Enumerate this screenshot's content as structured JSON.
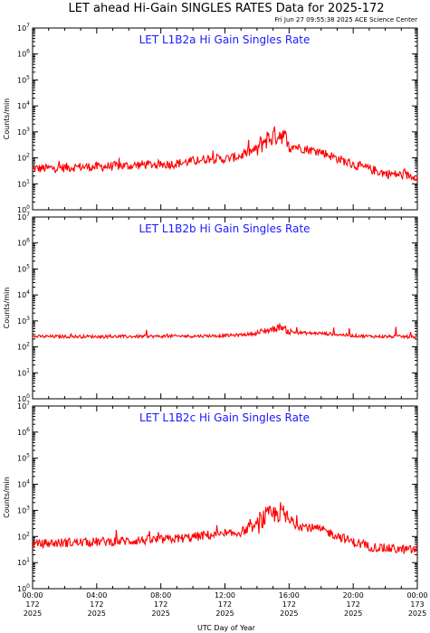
{
  "figure": {
    "title": "LET ahead Hi-Gain SINGLES RATES Data for 2025-172",
    "timestamp": "Fri Jun 27 09:55:38 2025 ACE Science Center",
    "ylabel": "Counts/min",
    "xlabel": "UTC Day of Year",
    "colors": {
      "trace": "#ff0000",
      "panel_title": "#1a1aff",
      "axes": "#000000",
      "background": "#ffffff"
    }
  },
  "x_ticks": [
    {
      "time": "00:00",
      "doy": "172",
      "year": "2025"
    },
    {
      "time": "04:00",
      "doy": "172",
      "year": "2025"
    },
    {
      "time": "08:00",
      "doy": "172",
      "year": "2025"
    },
    {
      "time": "12:00",
      "doy": "172",
      "year": "2025"
    },
    {
      "time": "16:00",
      "doy": "172",
      "year": "2025"
    },
    {
      "time": "20:00",
      "doy": "172",
      "year": "2025"
    },
    {
      "time": "00:00",
      "doy": "173",
      "year": "2025"
    }
  ],
  "chart_data": [
    {
      "type": "line",
      "title": "LET L1B2a Hi Gain Singles Rate",
      "ylabel": "Counts/min",
      "xlabel": "UTC Day of Year",
      "x_unit": "hours of day 172 (2025)",
      "xlim": [
        0,
        24
      ],
      "ylim": [
        1,
        10000000
      ],
      "yscale": "log",
      "y_tick_labels": [
        "10^0",
        "10^1",
        "10^2",
        "10^3",
        "10^4",
        "10^5",
        "10^6",
        "10^7"
      ],
      "series": [
        {
          "x": [
            0,
            1,
            2,
            3,
            4,
            5,
            6,
            7,
            8,
            9,
            10,
            11,
            12,
            13,
            14,
            14.5,
            15,
            15.5,
            16,
            16.5,
            17,
            18,
            19,
            20,
            21,
            22,
            23,
            24
          ],
          "y": [
            38,
            40,
            42,
            45,
            45,
            48,
            50,
            55,
            55,
            60,
            75,
            95,
            90,
            120,
            220,
            500,
            650,
            900,
            350,
            260,
            220,
            170,
            95,
            55,
            38,
            25,
            22,
            20
          ]
        }
      ]
    },
    {
      "type": "line",
      "title": "LET L1B2b Hi Gain Singles Rate",
      "ylabel": "Counts/min",
      "xlabel": "UTC Day of Year",
      "x_unit": "hours of day 172 (2025)",
      "xlim": [
        0,
        24
      ],
      "ylim": [
        1,
        10000000
      ],
      "yscale": "log",
      "y_tick_labels": [
        "10^0",
        "10^1",
        "10^2",
        "10^3",
        "10^4",
        "10^5",
        "10^6",
        "10^7"
      ],
      "series": [
        {
          "x": [
            0,
            2,
            4,
            6,
            8,
            10,
            12,
            13,
            14,
            14.5,
            15,
            15.5,
            16,
            17,
            18,
            19,
            20,
            21,
            22,
            24
          ],
          "y": [
            250,
            250,
            250,
            250,
            255,
            260,
            270,
            290,
            330,
            420,
            480,
            600,
            380,
            340,
            330,
            300,
            270,
            255,
            250,
            245
          ]
        }
      ]
    },
    {
      "type": "line",
      "title": "LET L1B2c Hi Gain Singles Rate",
      "ylabel": "Counts/min",
      "xlabel": "UTC Day of Year",
      "x_unit": "hours of day 172 (2025)",
      "xlim": [
        0,
        24
      ],
      "ylim": [
        1,
        10000000
      ],
      "yscale": "log",
      "y_tick_labels": [
        "10^0",
        "10^1",
        "10^2",
        "10^3",
        "10^4",
        "10^5",
        "10^6",
        "10^7"
      ],
      "series": [
        {
          "x": [
            0,
            1,
            2,
            3,
            4,
            5,
            6,
            7,
            8,
            9,
            10,
            11,
            12,
            13,
            14,
            14.5,
            15,
            15.5,
            16,
            16.5,
            17,
            18,
            19,
            20,
            21,
            22,
            23,
            24
          ],
          "y": [
            50,
            55,
            58,
            60,
            62,
            65,
            68,
            72,
            75,
            82,
            95,
            115,
            110,
            150,
            260,
            550,
            650,
            900,
            380,
            280,
            240,
            180,
            110,
            60,
            42,
            35,
            32,
            30
          ]
        }
      ]
    }
  ]
}
